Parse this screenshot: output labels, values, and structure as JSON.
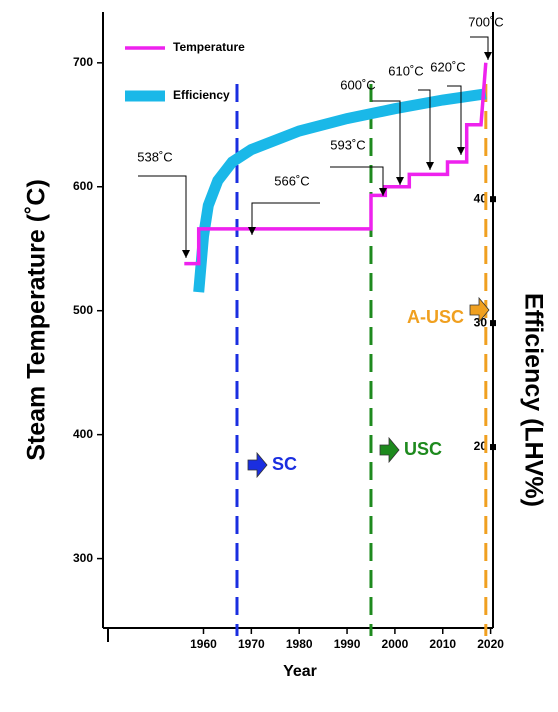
{
  "chart_data": {
    "type": "line",
    "xlabel": "Year",
    "ylabel": "Steam Temperature  (˚C)",
    "y2label": "Efficiency (LHV%)",
    "xlim": [
      1939,
      2020.5
    ],
    "xticks": [
      1960,
      1970,
      1980,
      1990,
      2000,
      2010,
      2020
    ],
    "ylim": [
      244,
      741
    ],
    "yticks": [
      300,
      400,
      500,
      600,
      700
    ],
    "y2lim": [
      5.4,
      55.1
    ],
    "y2ticks": [
      20,
      30,
      40
    ],
    "legend": "upper left",
    "series": [
      {
        "name": "Temperature",
        "color": "#ee22ee",
        "x": [
          1956,
          1959,
          1959,
          1995,
          1995,
          1998,
          1998,
          2003,
          2003,
          2011,
          2011,
          2015,
          2015,
          2018,
          2019
        ],
        "values": [
          538,
          538,
          566,
          566,
          593,
          593,
          600,
          600,
          610,
          610,
          620,
          620,
          650,
          650,
          700
        ]
      },
      {
        "name": "Efficiency",
        "color": "#1ab8e8",
        "axis": "y2",
        "x": [
          1959,
          1960,
          1961,
          1963,
          1966,
          1970,
          1980,
          1990,
          2000,
          2010,
          2019
        ],
        "values": [
          32.5,
          37,
          39.5,
          41.5,
          43,
          44,
          45.5,
          46.5,
          47.3,
          48,
          48.5
        ]
      }
    ],
    "vlines": [
      {
        "x": 1967,
        "color": "#1a2ee0"
      },
      {
        "x": 1995,
        "color": "#1e8a1e"
      },
      {
        "x": 2019,
        "color": "#f0a020"
      }
    ],
    "annotations": [
      "538˚C",
      "566˚C",
      "593˚C",
      "600˚C",
      "610˚C",
      "620˚C",
      "700˚C"
    ],
    "eras": [
      {
        "text": "SC",
        "color": "#1a2ee0"
      },
      {
        "text": "USC",
        "color": "#1e8a1e"
      },
      {
        "text": "A-USC",
        "color": "#f0a020"
      }
    ]
  }
}
